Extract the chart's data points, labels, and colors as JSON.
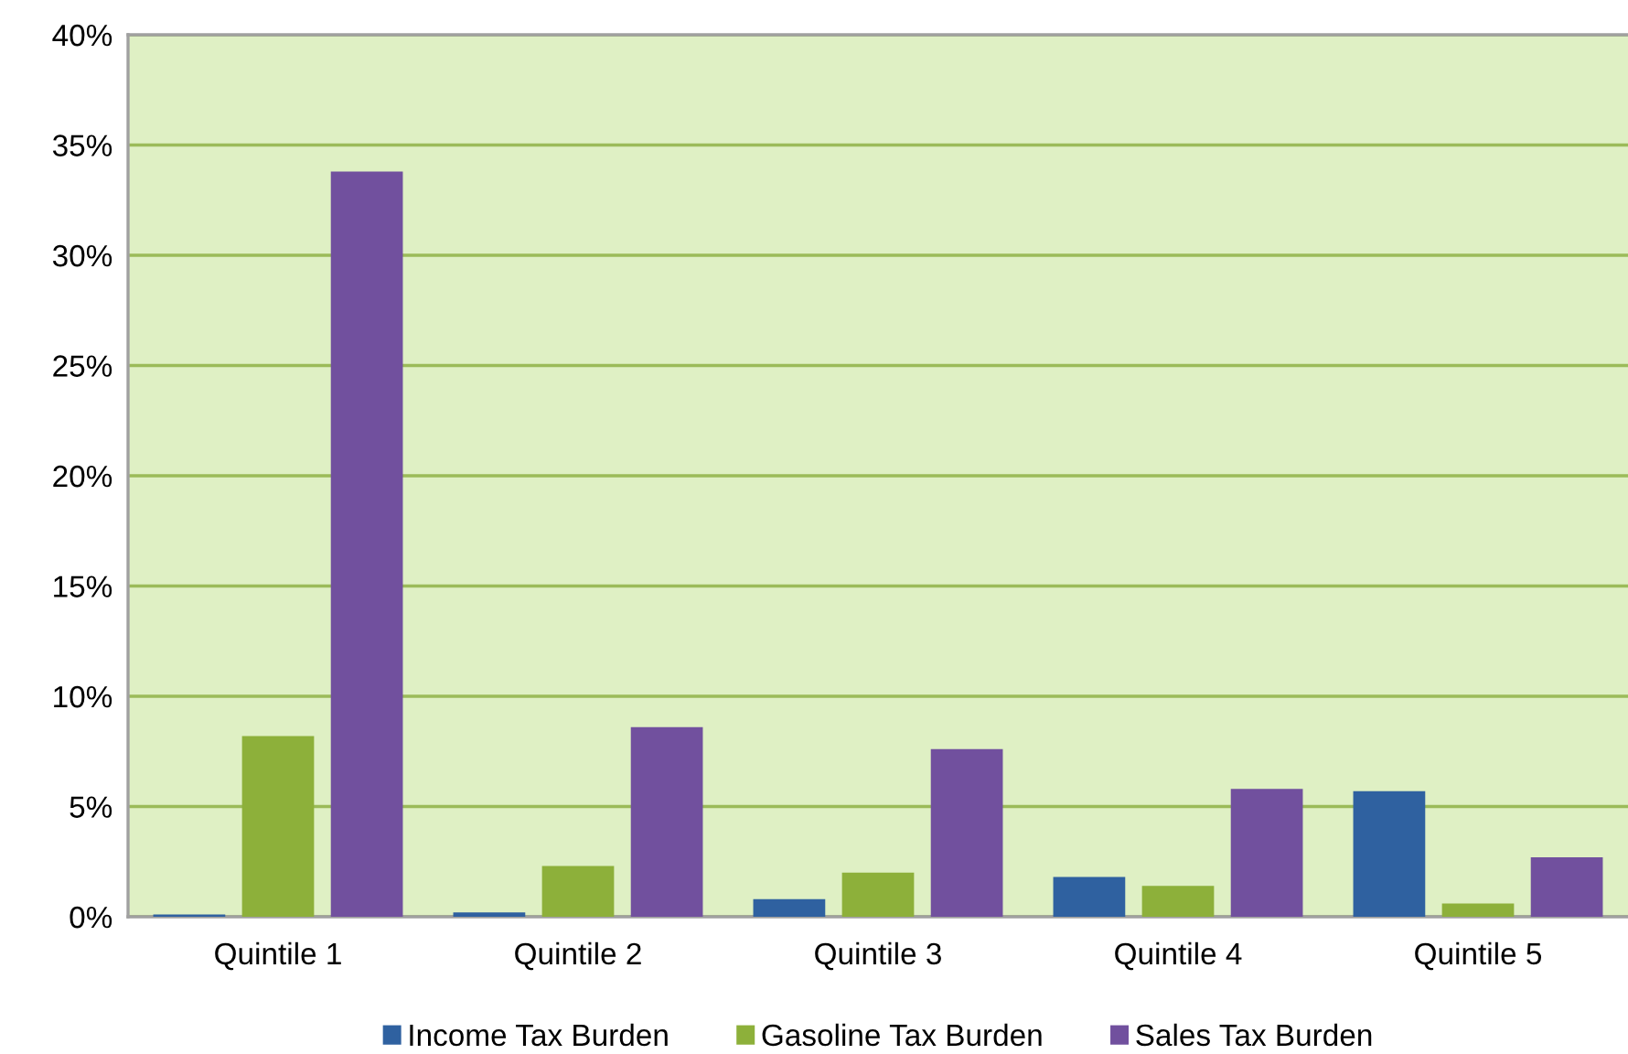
{
  "chart_data": {
    "type": "bar",
    "categories": [
      "Quintile 1",
      "Quintile 2",
      "Quintile 3",
      "Quintile 4",
      "Quintile 5"
    ],
    "series": [
      {
        "name": "Income Tax Burden",
        "color": "#2f61a0",
        "values": [
          0.1,
          0.2,
          0.8,
          1.8,
          5.7
        ]
      },
      {
        "name": "Gasoline Tax Burden",
        "color": "#8db03a",
        "values": [
          8.2,
          2.3,
          2.0,
          1.4,
          0.6
        ]
      },
      {
        "name": "Sales Tax Burden",
        "color": "#71509e",
        "values": [
          33.8,
          8.6,
          7.6,
          5.8,
          2.7
        ]
      }
    ],
    "ylim": [
      0,
      40
    ],
    "yticks": [
      {
        "value": 0,
        "label": "0%"
      },
      {
        "value": 5,
        "label": "5%"
      },
      {
        "value": 10,
        "label": "10%"
      },
      {
        "value": 15,
        "label": "15%"
      },
      {
        "value": 20,
        "label": "20%"
      },
      {
        "value": 25,
        "label": "25%"
      },
      {
        "value": 30,
        "label": "30%"
      },
      {
        "value": 35,
        "label": "35%"
      },
      {
        "value": 40,
        "label": "40%"
      }
    ],
    "grid": "y",
    "legend": "bottom"
  }
}
